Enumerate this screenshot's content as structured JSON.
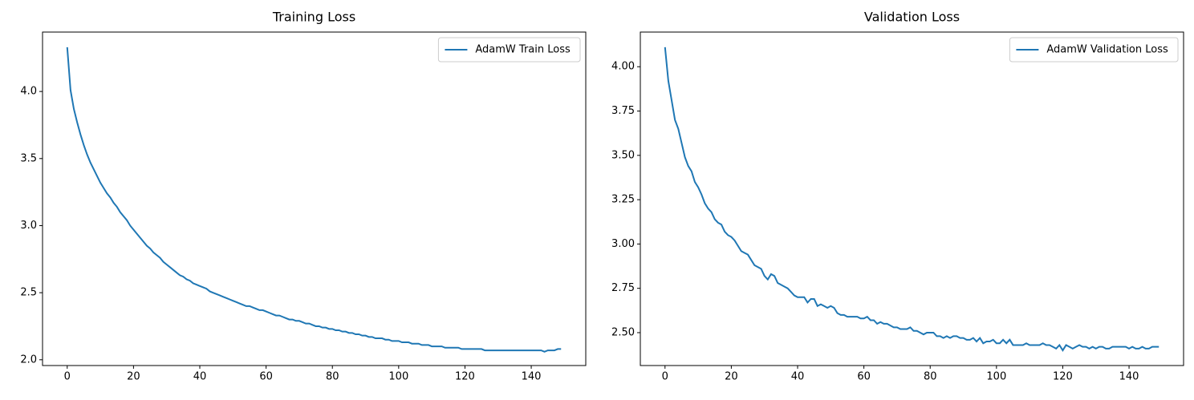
{
  "chart_data": [
    {
      "type": "line",
      "title": "Training Loss",
      "legend": "upper right",
      "grid": false,
      "x": [
        0,
        1,
        2,
        3,
        4,
        5,
        6,
        7,
        8,
        9,
        10,
        11,
        12,
        13,
        14,
        15,
        16,
        17,
        18,
        19,
        20,
        21,
        22,
        23,
        24,
        25,
        26,
        27,
        28,
        29,
        30,
        31,
        32,
        33,
        34,
        35,
        36,
        37,
        38,
        39,
        40,
        41,
        42,
        43,
        44,
        45,
        46,
        47,
        48,
        49,
        50,
        51,
        52,
        53,
        54,
        55,
        56,
        57,
        58,
        59,
        60,
        61,
        62,
        63,
        64,
        65,
        66,
        67,
        68,
        69,
        70,
        71,
        72,
        73,
        74,
        75,
        76,
        77,
        78,
        79,
        80,
        81,
        82,
        83,
        84,
        85,
        86,
        87,
        88,
        89,
        90,
        91,
        92,
        93,
        94,
        95,
        96,
        97,
        98,
        99,
        100,
        101,
        102,
        103,
        104,
        105,
        106,
        107,
        108,
        109,
        110,
        111,
        112,
        113,
        114,
        115,
        116,
        117,
        118,
        119,
        120,
        121,
        122,
        123,
        124,
        125,
        126,
        127,
        128,
        129,
        130,
        131,
        132,
        133,
        134,
        135,
        136,
        137,
        138,
        139,
        140,
        141,
        142,
        143,
        144,
        145,
        146,
        147,
        148,
        149
      ],
      "series": [
        {
          "name": "AdamW Train Loss",
          "color": "#1f77b4",
          "values": [
            4.33,
            4.01,
            3.87,
            3.77,
            3.68,
            3.6,
            3.53,
            3.47,
            3.42,
            3.37,
            3.32,
            3.28,
            3.24,
            3.21,
            3.17,
            3.14,
            3.1,
            3.07,
            3.04,
            3.0,
            2.97,
            2.94,
            2.91,
            2.88,
            2.85,
            2.83,
            2.8,
            2.78,
            2.76,
            2.73,
            2.71,
            2.69,
            2.67,
            2.65,
            2.63,
            2.62,
            2.6,
            2.59,
            2.57,
            2.56,
            2.55,
            2.54,
            2.53,
            2.51,
            2.5,
            2.49,
            2.48,
            2.47,
            2.46,
            2.45,
            2.44,
            2.43,
            2.42,
            2.41,
            2.4,
            2.4,
            2.39,
            2.38,
            2.37,
            2.37,
            2.36,
            2.35,
            2.34,
            2.33,
            2.33,
            2.32,
            2.31,
            2.3,
            2.3,
            2.29,
            2.29,
            2.28,
            2.27,
            2.27,
            2.26,
            2.25,
            2.25,
            2.24,
            2.24,
            2.23,
            2.23,
            2.22,
            2.22,
            2.21,
            2.21,
            2.2,
            2.2,
            2.19,
            2.19,
            2.18,
            2.18,
            2.17,
            2.17,
            2.16,
            2.16,
            2.16,
            2.15,
            2.15,
            2.14,
            2.14,
            2.14,
            2.13,
            2.13,
            2.13,
            2.12,
            2.12,
            2.12,
            2.11,
            2.11,
            2.11,
            2.1,
            2.1,
            2.1,
            2.1,
            2.09,
            2.09,
            2.09,
            2.09,
            2.09,
            2.08,
            2.08,
            2.08,
            2.08,
            2.08,
            2.08,
            2.08,
            2.07,
            2.07,
            2.07,
            2.07,
            2.07,
            2.07,
            2.07,
            2.07,
            2.07,
            2.07,
            2.07,
            2.07,
            2.07,
            2.07,
            2.07,
            2.07,
            2.07,
            2.07,
            2.06,
            2.07,
            2.07,
            2.07,
            2.08,
            2.08
          ]
        }
      ],
      "xlim": [
        -7.45,
        156.45
      ],
      "xticks": [
        0,
        20,
        40,
        60,
        80,
        100,
        120,
        140
      ],
      "ylim": [
        1.957,
        4.443
      ],
      "yticks": [
        {
          "value": 2,
          "label": "2.0"
        },
        2.5,
        {
          "value": 3,
          "label": "3.0"
        },
        3.5,
        {
          "value": 4,
          "label": "4.0"
        }
      ]
    },
    {
      "type": "line",
      "title": "Validation Loss",
      "legend": "upper right",
      "grid": false,
      "x": [
        0,
        1,
        2,
        3,
        4,
        5,
        6,
        7,
        8,
        9,
        10,
        11,
        12,
        13,
        14,
        15,
        16,
        17,
        18,
        19,
        20,
        21,
        22,
        23,
        24,
        25,
        26,
        27,
        28,
        29,
        30,
        31,
        32,
        33,
        34,
        35,
        36,
        37,
        38,
        39,
        40,
        41,
        42,
        43,
        44,
        45,
        46,
        47,
        48,
        49,
        50,
        51,
        52,
        53,
        54,
        55,
        56,
        57,
        58,
        59,
        60,
        61,
        62,
        63,
        64,
        65,
        66,
        67,
        68,
        69,
        70,
        71,
        72,
        73,
        74,
        75,
        76,
        77,
        78,
        79,
        80,
        81,
        82,
        83,
        84,
        85,
        86,
        87,
        88,
        89,
        90,
        91,
        92,
        93,
        94,
        95,
        96,
        97,
        98,
        99,
        100,
        101,
        102,
        103,
        104,
        105,
        106,
        107,
        108,
        109,
        110,
        111,
        112,
        113,
        114,
        115,
        116,
        117,
        118,
        119,
        120,
        121,
        122,
        123,
        124,
        125,
        126,
        127,
        128,
        129,
        130,
        131,
        132,
        133,
        134,
        135,
        136,
        137,
        138,
        139,
        140,
        141,
        142,
        143,
        144,
        145,
        146,
        147,
        148,
        149
      ],
      "series": [
        {
          "name": "AdamW Validation Loss",
          "color": "#1f77b4",
          "values": [
            4.11,
            3.92,
            3.81,
            3.7,
            3.65,
            3.57,
            3.49,
            3.44,
            3.41,
            3.35,
            3.32,
            3.28,
            3.23,
            3.2,
            3.18,
            3.14,
            3.12,
            3.11,
            3.07,
            3.05,
            3.04,
            3.02,
            2.99,
            2.96,
            2.95,
            2.94,
            2.91,
            2.88,
            2.87,
            2.86,
            2.82,
            2.8,
            2.83,
            2.82,
            2.78,
            2.77,
            2.76,
            2.75,
            2.73,
            2.71,
            2.7,
            2.7,
            2.7,
            2.67,
            2.69,
            2.69,
            2.65,
            2.66,
            2.65,
            2.64,
            2.65,
            2.64,
            2.61,
            2.6,
            2.6,
            2.59,
            2.59,
            2.59,
            2.59,
            2.58,
            2.58,
            2.59,
            2.57,
            2.57,
            2.55,
            2.56,
            2.55,
            2.55,
            2.54,
            2.53,
            2.53,
            2.52,
            2.52,
            2.52,
            2.53,
            2.51,
            2.51,
            2.5,
            2.49,
            2.5,
            2.5,
            2.5,
            2.48,
            2.48,
            2.47,
            2.48,
            2.47,
            2.48,
            2.48,
            2.47,
            2.47,
            2.46,
            2.46,
            2.47,
            2.45,
            2.47,
            2.44,
            2.45,
            2.45,
            2.46,
            2.44,
            2.44,
            2.46,
            2.44,
            2.46,
            2.43,
            2.43,
            2.43,
            2.43,
            2.44,
            2.43,
            2.43,
            2.43,
            2.43,
            2.44,
            2.43,
            2.43,
            2.42,
            2.41,
            2.43,
            2.4,
            2.43,
            2.42,
            2.41,
            2.42,
            2.43,
            2.42,
            2.42,
            2.41,
            2.42,
            2.41,
            2.42,
            2.42,
            2.41,
            2.41,
            2.42,
            2.42,
            2.42,
            2.42,
            2.42,
            2.41,
            2.42,
            2.41,
            2.41,
            2.42,
            2.41,
            2.41,
            2.42,
            2.42,
            2.42
          ]
        }
      ],
      "xlim": [
        -7.45,
        156.45
      ],
      "xticks": [
        0,
        20,
        40,
        60,
        80,
        100,
        120,
        140
      ],
      "ylim": [
        2.3145,
        4.1955
      ],
      "yticks": [
        {
          "value": 2.5,
          "label": "2.50"
        },
        {
          "value": 2.75,
          "label": "2.75"
        },
        {
          "value": 3,
          "label": "3.00"
        },
        {
          "value": 3.25,
          "label": "3.25"
        },
        {
          "value": 3.5,
          "label": "3.50"
        },
        {
          "value": 3.75,
          "label": "3.75"
        },
        {
          "value": 4,
          "label": "4.00"
        }
      ]
    }
  ]
}
